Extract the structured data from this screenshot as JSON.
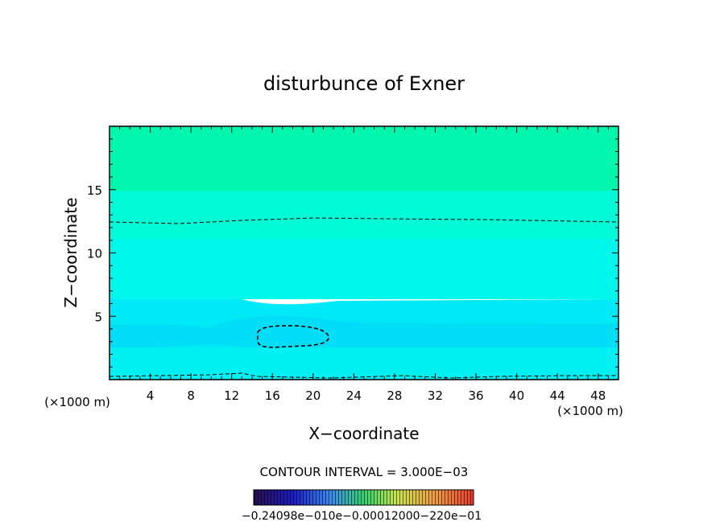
{
  "chart_data": {
    "type": "heatmap",
    "title": "disturbunce of Exner",
    "xlabel": "X−coordinate",
    "ylabel": "Z−coordinate",
    "x_unit_left": "(×1000 m)",
    "x_unit_right": "(×1000 m)",
    "xlim": [
      0,
      50
    ],
    "ylim": [
      0,
      20
    ],
    "x_ticks": [
      4,
      8,
      12,
      16,
      20,
      24,
      28,
      32,
      36,
      40,
      44,
      48
    ],
    "x_tick_labels": [
      "4",
      "8",
      "12",
      "16",
      "20",
      "24",
      "28",
      "32",
      "36",
      "40",
      "44",
      "48"
    ],
    "y_ticks": [
      5,
      10,
      15
    ],
    "y_tick_labels": [
      "5",
      "10",
      "15"
    ],
    "contour_interval_text": "CONTOUR INTERVAL = 3.000E−03",
    "colorbar_text": "−0.24098e−010e−0.00012000−220e−01",
    "colors": {
      "band_top": "#00f7ad",
      "band_upper_mid": "#00fbd6",
      "band_mid": "#00f7ec",
      "band_low": "#00e9f7",
      "band_core": "#00ddf7",
      "band_bottom": "#00f0f4"
    },
    "contours": [
      {
        "name": "upper dashed contour",
        "points": [
          [
            0,
            12.4
          ],
          [
            7,
            12.3
          ],
          [
            13,
            12.5
          ],
          [
            20,
            12.7
          ],
          [
            28,
            12.6
          ],
          [
            38,
            12.5
          ],
          [
            50,
            12.4
          ]
        ]
      },
      {
        "name": "closed dashed contour",
        "points": [
          [
            14.6,
            3.6
          ],
          [
            15.6,
            4.2
          ],
          [
            18,
            4.3
          ],
          [
            20.8,
            4.1
          ],
          [
            21.8,
            3.5
          ],
          [
            21.2,
            2.7
          ],
          [
            18.5,
            2.6
          ],
          [
            15.6,
            2.5
          ],
          [
            14.6,
            3.0
          ],
          [
            14.6,
            3.6
          ]
        ]
      },
      {
        "name": "bottom dashed contour",
        "points": [
          [
            0,
            0.35
          ],
          [
            6,
            0.4
          ],
          [
            11,
            0.45
          ],
          [
            14,
            0.35
          ],
          [
            19,
            0.3
          ],
          [
            22,
            0.15
          ],
          [
            26,
            0.3
          ],
          [
            32,
            0.2
          ],
          [
            38,
            0.35
          ],
          [
            44,
            0.45
          ],
          [
            50,
            0.45
          ]
        ]
      }
    ]
  }
}
